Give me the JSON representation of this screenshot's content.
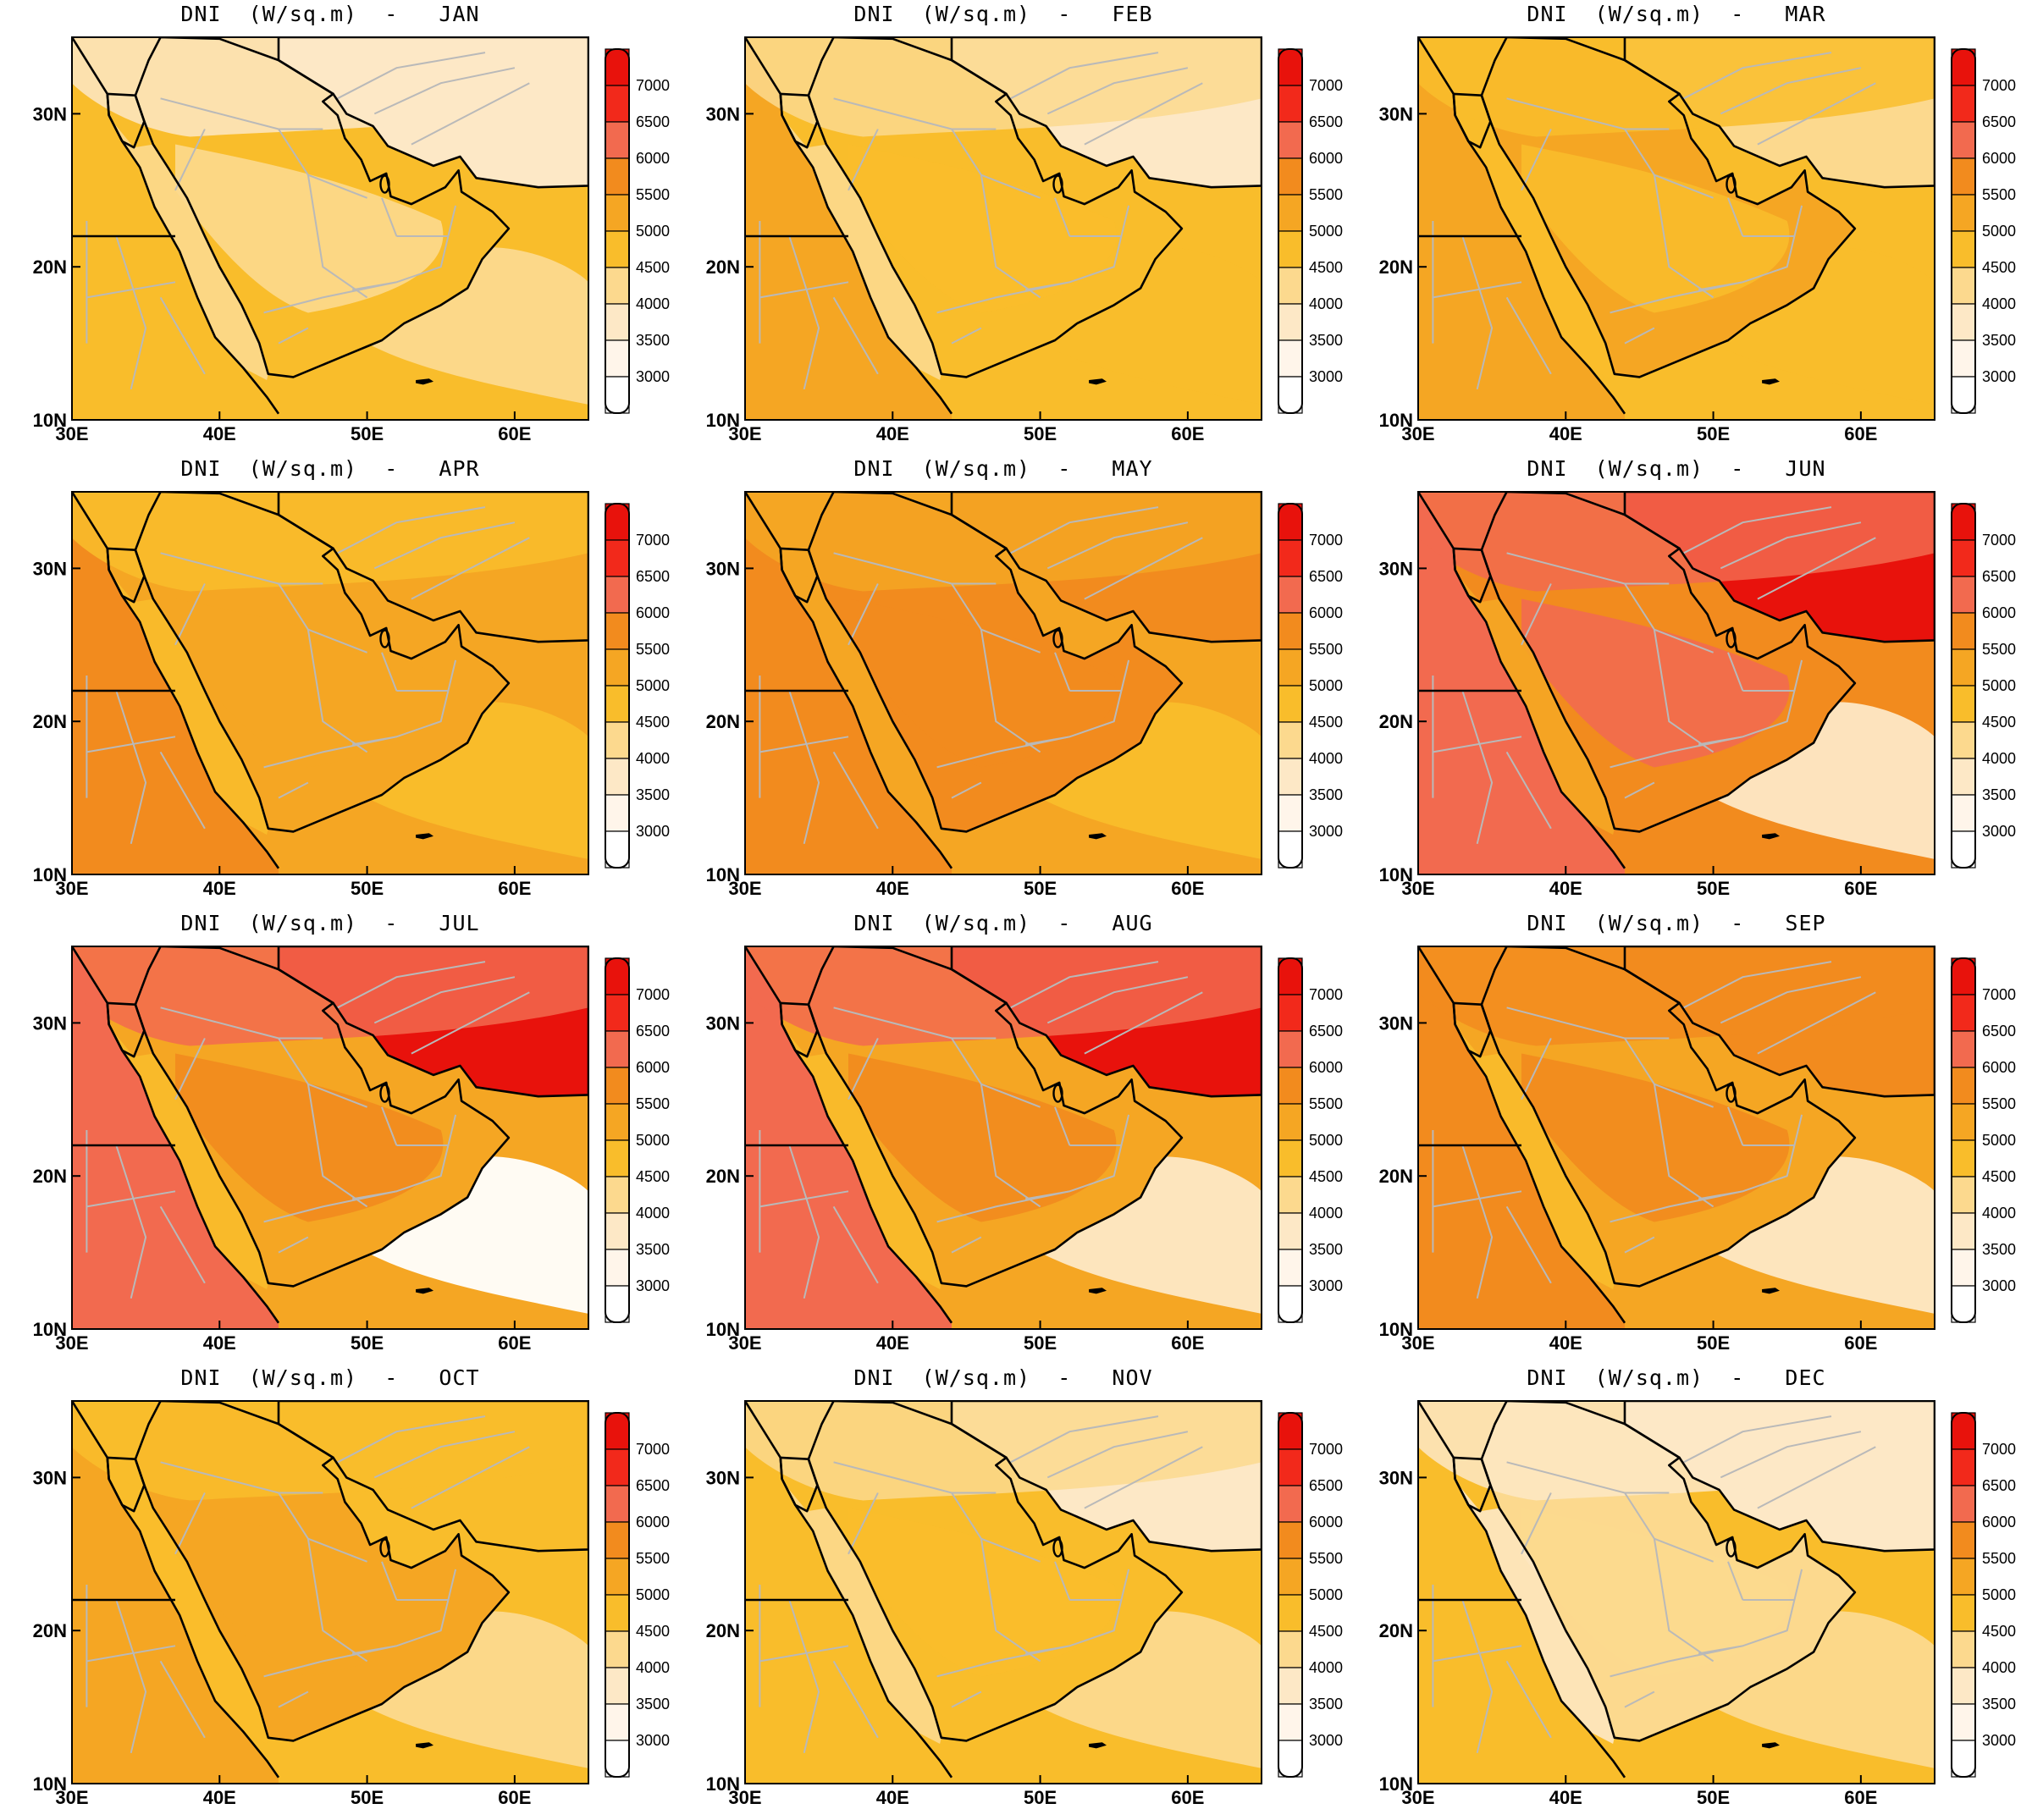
{
  "figure": {
    "variable": "DNI",
    "units": "(W/sq.m)",
    "separator": "-",
    "months": [
      "JAN",
      "FEB",
      "MAR",
      "APR",
      "MAY",
      "JUN",
      "JUL",
      "AUG",
      "SEP",
      "OCT",
      "NOV",
      "DEC"
    ]
  },
  "axes": {
    "x_ticks": [
      "30E",
      "40E",
      "50E",
      "60E"
    ],
    "y_ticks": [
      "30N",
      "20N",
      "10N"
    ]
  },
  "colorbar": {
    "labels": [
      "7000",
      "6500",
      "6000",
      "5500",
      "5000",
      "4500",
      "4000",
      "3500",
      "3000"
    ],
    "colors": [
      "#e8120c",
      "#f2291b",
      "#f26a4f",
      "#f28b1e",
      "#f5a623",
      "#f9bd2b",
      "#fcd98e",
      "#fde8c6",
      "#fff5ea",
      "#ffffff"
    ]
  },
  "map_colors": {
    "ocean_dark": "#f5a623",
    "border_outline": "#000000",
    "admin_lines": "#b9b9b9"
  },
  "panels": [
    {
      "month": "JAN",
      "levels": {
        "n": 1,
        "c": 2,
        "s": 3,
        "w": 3,
        "e": 3,
        "sea": 2,
        "ne": 1
      }
    },
    {
      "month": "FEB",
      "levels": {
        "n": 2,
        "c": 3,
        "s": 3,
        "w": 4,
        "e": 3,
        "sea": 3,
        "ne": 1
      }
    },
    {
      "month": "MAR",
      "levels": {
        "n": 3,
        "c": 3,
        "s": 4,
        "w": 4,
        "e": 3,
        "sea": 3,
        "ne": 2
      }
    },
    {
      "month": "APR",
      "levels": {
        "n": 3,
        "c": 4,
        "s": 4,
        "w": 5,
        "e": 4,
        "sea": 3,
        "ne": 4
      }
    },
    {
      "month": "MAY",
      "levels": {
        "n": 4,
        "c": 5,
        "s": 5,
        "w": 5,
        "e": 4,
        "sea": 3,
        "ne": 5
      }
    },
    {
      "month": "JUN",
      "levels": {
        "n": 6,
        "c": 6,
        "s": 5,
        "w": 6,
        "e": 5,
        "sea": 1,
        "ne": 7
      }
    },
    {
      "month": "JUL",
      "levels": {
        "n": 6,
        "c": 5,
        "s": 4,
        "w": 6,
        "e": 4,
        "sea": 0,
        "ne": 7
      }
    },
    {
      "month": "AUG",
      "levels": {
        "n": 6,
        "c": 5,
        "s": 4,
        "w": 6,
        "e": 4,
        "sea": 1,
        "ne": 7
      }
    },
    {
      "month": "SEP",
      "levels": {
        "n": 5,
        "c": 5,
        "s": 4,
        "w": 5,
        "e": 4,
        "sea": 1,
        "ne": 5
      }
    },
    {
      "month": "OCT",
      "levels": {
        "n": 3,
        "c": 4,
        "s": 4,
        "w": 4,
        "e": 3,
        "sea": 2,
        "ne": 3
      }
    },
    {
      "month": "NOV",
      "levels": {
        "n": 2,
        "c": 3,
        "s": 3,
        "w": 3,
        "e": 3,
        "sea": 2,
        "ne": 1
      }
    },
    {
      "month": "DEC",
      "levels": {
        "n": 1,
        "c": 2,
        "s": 2,
        "w": 3,
        "e": 3,
        "sea": 2,
        "ne": 1
      }
    }
  ]
}
